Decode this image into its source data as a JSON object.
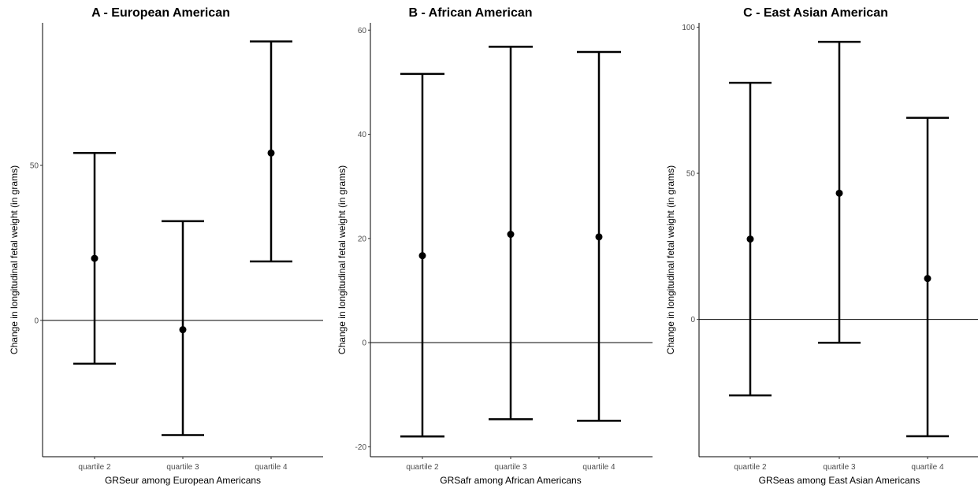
{
  "chart_data": [
    {
      "type": "errorbar",
      "title": "A - European American",
      "xlabel": "GRSeur among European Americans",
      "ylabel": "Change in longitudinal fetal weight (in grams)",
      "categories": [
        "quartile 2",
        "quartile 3",
        "quartile 4"
      ],
      "estimate": [
        20,
        -3,
        54
      ],
      "ci_lower": [
        -14,
        -37,
        19
      ],
      "ci_upper": [
        54,
        32,
        90
      ],
      "ylim": [
        -44,
        96
      ],
      "yticks": [
        0,
        50
      ],
      "reference_line": 0,
      "grid": false
    },
    {
      "type": "errorbar",
      "title": "B - African American",
      "xlabel": "GRSafr among African Americans",
      "ylabel": "Change in longitudinal fetal weight (in grams)",
      "categories": [
        "quartile 2",
        "quartile 3",
        "quartile 4"
      ],
      "estimate": [
        16.7,
        20.8,
        20.3
      ],
      "ci_lower": [
        -18,
        -14.7,
        -15
      ],
      "ci_upper": [
        51.6,
        56.8,
        55.8
      ],
      "ylim": [
        -21.9,
        61.4
      ],
      "yticks": [
        -20,
        0,
        20,
        40,
        60
      ],
      "reference_line": 0,
      "grid": false
    },
    {
      "type": "errorbar",
      "title": "C - East Asian American",
      "xlabel": "GRSeas among East Asian Americans",
      "ylabel": "Change in longitudinal fetal weight (in grams)",
      "categories": [
        "quartile 2",
        "quartile 3",
        "quartile 4"
      ],
      "estimate": [
        27.5,
        43.2,
        14
      ],
      "ci_lower": [
        -26,
        -8,
        -40
      ],
      "ci_upper": [
        81,
        95,
        69
      ],
      "ylim": [
        -47,
        101.5
      ],
      "yticks": [
        0,
        50,
        100
      ],
      "reference_line": 0,
      "grid": false
    }
  ]
}
